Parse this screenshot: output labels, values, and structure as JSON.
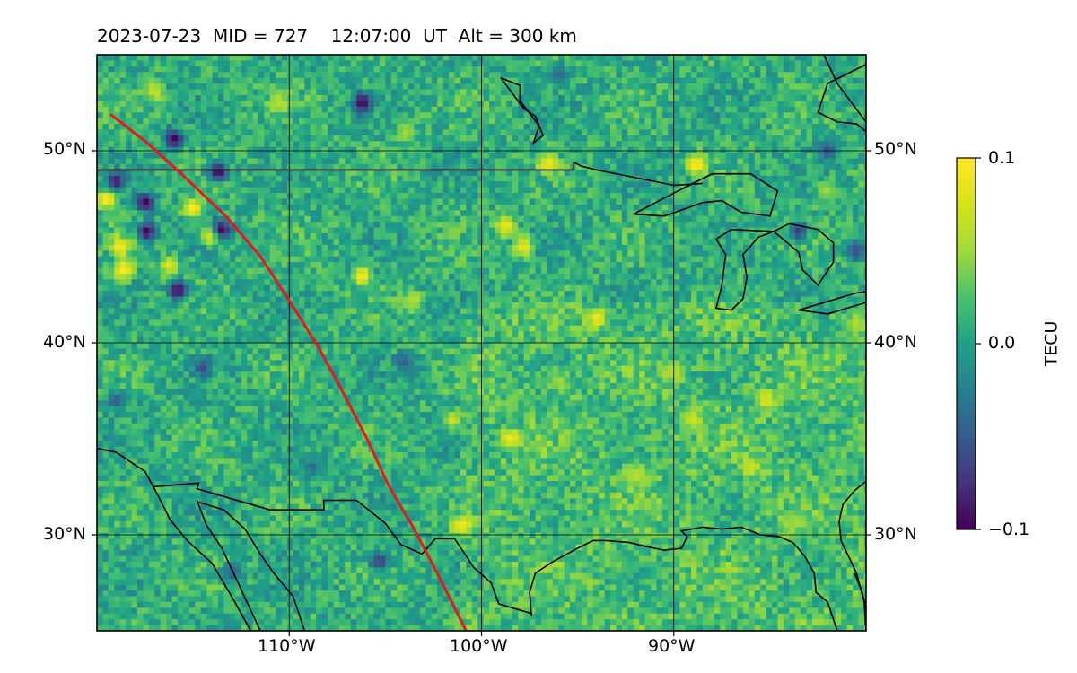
{
  "header": {
    "title": "2023-07-23  MID = 727    12:07:00  UT  Alt = 300 km"
  },
  "chart_data": {
    "type": "heatmap",
    "title": "2023-07-23  MID = 727    12:07:00  UT  Alt = 300 km",
    "xlabel": "",
    "ylabel": "",
    "xlim": [
      -120,
      -80
    ],
    "ylim": [
      25,
      55
    ],
    "x_ticks": [
      {
        "value": -110,
        "label": "110°W"
      },
      {
        "value": -100,
        "label": "100°W"
      },
      {
        "value": -90,
        "label": "90°W"
      }
    ],
    "y_ticks": [
      {
        "value": 30,
        "label": "30°N"
      },
      {
        "value": 40,
        "label": "40°N"
      },
      {
        "value": 50,
        "label": "50°N"
      }
    ],
    "grid": true,
    "colormap": "viridis",
    "colorbar": {
      "label": "TECU",
      "range": [
        -0.1,
        0.1
      ],
      "ticks": [
        {
          "value": 0.1,
          "label": "0.1"
        },
        {
          "value": 0.0,
          "label": "0.0"
        },
        {
          "value": -0.1,
          "label": "−0.1"
        }
      ]
    },
    "track": {
      "color": "#e41a1c",
      "lon": [
        -119.3,
        -117.5,
        -115.5,
        -113.3,
        -111.5,
        -110.0,
        -108.5,
        -107.3,
        -106.0,
        -104.8,
        -103.5,
        -102.3,
        -101.5,
        -100.8
      ],
      "lat": [
        51.9,
        50.5,
        48.7,
        46.6,
        44.5,
        42.2,
        39.8,
        37.6,
        35.1,
        32.5,
        30.3,
        28.0,
        26.4,
        25.0
      ]
    },
    "hotspots": [
      {
        "lon": -119.5,
        "lat": 47.5,
        "value": 0.1
      },
      {
        "lon": -118.8,
        "lat": 45.0,
        "value": 0.1
      },
      {
        "lon": -118.6,
        "lat": 43.8,
        "value": 0.1
      },
      {
        "lon": -115.0,
        "lat": 47.0,
        "value": 0.1
      },
      {
        "lon": -114.0,
        "lat": 45.6,
        "value": 0.1
      },
      {
        "lon": -116.2,
        "lat": 44.0,
        "value": 0.08
      },
      {
        "lon": -106.2,
        "lat": 43.5,
        "value": 0.1
      },
      {
        "lon": -103.5,
        "lat": 42.2,
        "value": 0.06
      },
      {
        "lon": -101.5,
        "lat": 36.0,
        "value": 0.07
      },
      {
        "lon": -98.7,
        "lat": 46.1,
        "value": 0.09
      },
      {
        "lon": -97.8,
        "lat": 45.0,
        "value": 0.09
      },
      {
        "lon": -96.5,
        "lat": 49.3,
        "value": 0.09
      },
      {
        "lon": -94.0,
        "lat": 41.3,
        "value": 0.09
      },
      {
        "lon": -88.8,
        "lat": 49.3,
        "value": 0.1
      },
      {
        "lon": -101.0,
        "lat": 30.5,
        "value": 0.09
      },
      {
        "lon": -98.5,
        "lat": 35.0,
        "value": 0.09
      },
      {
        "lon": -89.0,
        "lat": 36.0,
        "value": 0.07
      },
      {
        "lon": -86.0,
        "lat": 33.5,
        "value": 0.07
      },
      {
        "lon": -85.2,
        "lat": 37.0,
        "value": 0.08
      },
      {
        "lon": -90.0,
        "lat": 38.5,
        "value": 0.06
      },
      {
        "lon": -110.5,
        "lat": 52.5,
        "value": 0.06
      },
      {
        "lon": -104.0,
        "lat": 51.0,
        "value": 0.05
      },
      {
        "lon": -117.0,
        "lat": 53.1,
        "value": 0.07
      },
      {
        "lon": -82.0,
        "lat": 48.0,
        "value": 0.05
      },
      {
        "lon": -80.5,
        "lat": 41.0,
        "value": 0.06
      },
      {
        "lon": -92.0,
        "lat": 33.0,
        "value": 0.06
      },
      {
        "lon": -84.0,
        "lat": 30.5,
        "value": 0.05
      },
      {
        "lon": -96.0,
        "lat": 38.0,
        "value": 0.05
      }
    ],
    "coldspots": [
      {
        "lon": -113.7,
        "lat": 48.9,
        "value": -0.1
      },
      {
        "lon": -117.5,
        "lat": 47.3,
        "value": -0.1
      },
      {
        "lon": -117.4,
        "lat": 45.8,
        "value": -0.1
      },
      {
        "lon": -113.5,
        "lat": 45.9,
        "value": -0.1
      },
      {
        "lon": -116.0,
        "lat": 50.6,
        "value": -0.1
      },
      {
        "lon": -106.2,
        "lat": 52.5,
        "value": -0.1
      },
      {
        "lon": -115.8,
        "lat": 42.7,
        "value": -0.1
      },
      {
        "lon": -119.0,
        "lat": 48.4,
        "value": -0.09
      },
      {
        "lon": -114.5,
        "lat": 38.7,
        "value": -0.06
      },
      {
        "lon": -104.0,
        "lat": 39.0,
        "value": -0.05
      },
      {
        "lon": -105.3,
        "lat": 28.6,
        "value": -0.07
      },
      {
        "lon": -82.0,
        "lat": 50.0,
        "value": -0.06
      },
      {
        "lon": -83.5,
        "lat": 45.8,
        "value": -0.07
      },
      {
        "lon": -80.5,
        "lat": 44.8,
        "value": -0.06
      },
      {
        "lon": -96.0,
        "lat": 54.0,
        "value": -0.04
      },
      {
        "lon": -108.8,
        "lat": 33.5,
        "value": -0.04
      },
      {
        "lon": -113.0,
        "lat": 28.0,
        "value": -0.05
      },
      {
        "lon": -119.0,
        "lat": 37.0,
        "value": -0.05
      }
    ]
  }
}
